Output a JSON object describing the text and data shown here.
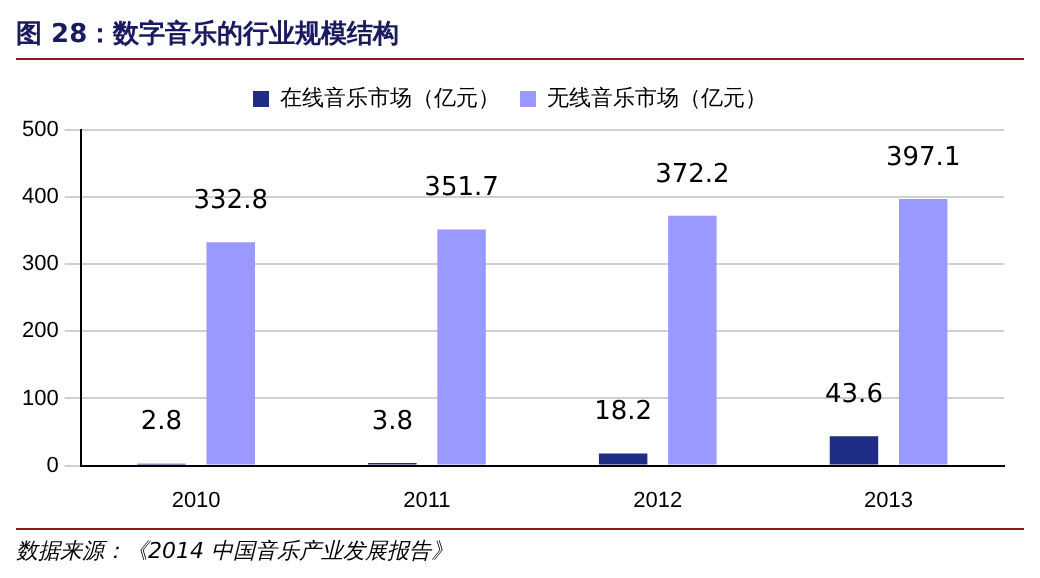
{
  "chart_data": {
    "type": "bar",
    "title": "图 28：数字音乐的行业规模结构",
    "categories": [
      "2010",
      "2011",
      "2012",
      "2013"
    ],
    "series": [
      {
        "name": "在线音乐市场（亿元）",
        "color": "#1f2d86",
        "values": [
          2.8,
          3.8,
          18.2,
          43.6
        ]
      },
      {
        "name": "无线音乐市场（亿元）",
        "color": "#9999ff",
        "values": [
          332.8,
          351.7,
          372.2,
          397.1
        ]
      }
    ],
    "ylim": [
      0,
      500
    ],
    "yticks": [
      0,
      100,
      200,
      300,
      400,
      500
    ],
    "grid": "y",
    "legend": "top",
    "data_labels": true,
    "annotations": [
      "数据来源：《2014 中国音乐产业发展报告》"
    ]
  }
}
